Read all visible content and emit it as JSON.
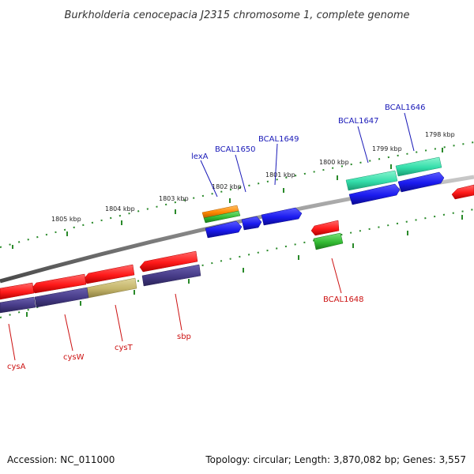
{
  "title": "Burkholderia cenocepacia J2315 chromosome 1, complete genome",
  "footer": {
    "accession": "Accession: NC_011000",
    "summary": "Topology: circular; Length: 3,870,082 bp; Genes: 3,557"
  },
  "scale_labels": [
    "1798 kbp",
    "1799 kbp",
    "1800 kbp",
    "1801 kbp",
    "1802 kbp",
    "1803 kbp",
    "1804 kbp",
    "1805 kbp"
  ],
  "gene_labels": {
    "top": [
      "BCAL1646",
      "BCAL1647",
      "BCAL1649",
      "BCAL1650",
      "lexA"
    ],
    "bottom": [
      "BCAL1648",
      "sbp",
      "cysT",
      "cysW",
      "cysA"
    ]
  },
  "colors": {
    "backbone": "#8a8a8a",
    "cds": "#ff1a1a",
    "gene_fwd": "#1a1aee",
    "gene_rev": "#4a3f8c",
    "gene_olive": "#c8b86a",
    "teal": "#33ddaa",
    "green": "#33bb33",
    "orange": "#ff8800",
    "tick": "#2a8a2a",
    "label_blue": "#1a1ab8",
    "label_red": "#cc1111"
  }
}
